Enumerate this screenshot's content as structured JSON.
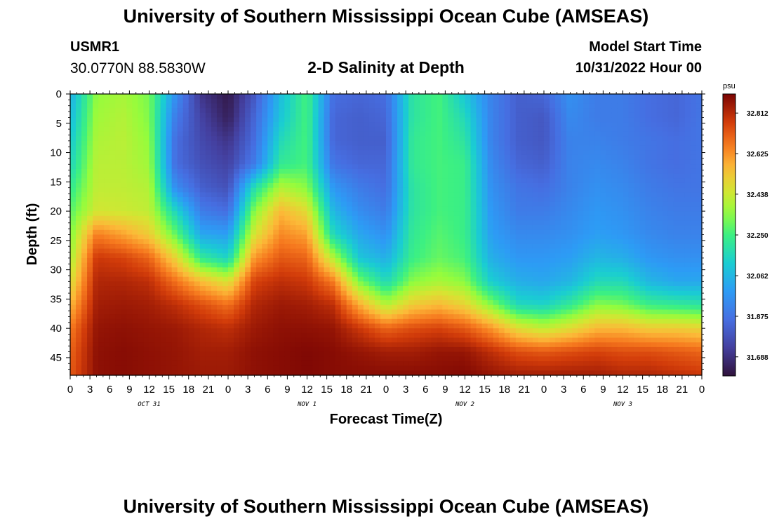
{
  "header": {
    "title": "University of Southern Mississippi Ocean Cube (AMSEAS)",
    "footer_title": "University of Southern Mississippi Ocean Cube (AMSEAS)",
    "station_id": "USMR1",
    "station_location": "30.0770N  88.5830W",
    "plot_title": "2-D Salinity at Depth",
    "model_start_label": "Model Start Time",
    "model_start_value": "10/31/2022 Hour 00"
  },
  "chart_data": {
    "type": "heatmap",
    "title": "2-D Salinity at Depth",
    "xlabel": "Forecast Time(Z)",
    "ylabel": "Depth (ft)",
    "x_unit": "hours since model start",
    "xlim": [
      0,
      96
    ],
    "ylim": [
      0,
      48
    ],
    "y_inverted": true,
    "x_ticks": [
      0,
      3,
      6,
      9,
      12,
      15,
      18,
      21,
      24,
      27,
      30,
      33,
      36,
      39,
      42,
      45,
      48,
      51,
      54,
      57,
      60,
      63,
      66,
      69,
      72,
      75,
      78,
      81,
      84,
      87,
      90,
      93,
      96
    ],
    "x_tick_labels": [
      "0",
      "3",
      "6",
      "9",
      "12",
      "15",
      "18",
      "21",
      "0",
      "3",
      "6",
      "9",
      "12",
      "15",
      "18",
      "21",
      "0",
      "3",
      "6",
      "9",
      "12",
      "15",
      "18",
      "21",
      "0",
      "3",
      "6",
      "9",
      "12",
      "15",
      "18",
      "21",
      "0"
    ],
    "y_ticks": [
      0,
      5,
      10,
      15,
      20,
      25,
      30,
      35,
      40,
      45
    ],
    "y_tick_labels": [
      "0",
      "5",
      "10",
      "15",
      "20",
      "25",
      "30",
      "35",
      "40",
      "45"
    ],
    "date_labels": [
      {
        "label": "OCT 31",
        "hour": 12
      },
      {
        "label": "NOV 1",
        "hour": 36
      },
      {
        "label": "NOV 2",
        "hour": 60
      },
      {
        "label": "NOV 3",
        "hour": 84
      }
    ],
    "colorbar": {
      "unit": "psu",
      "min": 31.6,
      "max": 32.9,
      "tick_values": [
        31.688,
        31.875,
        32.062,
        32.25,
        32.438,
        32.625,
        32.812
      ],
      "tick_labels": [
        "31.688",
        "31.875",
        "32.062",
        "32.250",
        "32.438",
        "32.625",
        "32.812"
      ]
    },
    "grid": {
      "time_hours": [
        0,
        4,
        8,
        12,
        16,
        20,
        24,
        28,
        32,
        36,
        40,
        44,
        48,
        52,
        56,
        60,
        64,
        68,
        72,
        76,
        80,
        84,
        88,
        92,
        96
      ],
      "depth_ft": [
        0,
        4,
        8,
        12,
        16,
        20,
        24,
        28,
        32,
        36,
        40,
        44,
        48
      ],
      "salinity_psu": [
        [
          32.04,
          32.07,
          32.11,
          32.15,
          32.22,
          32.28,
          32.33,
          32.38,
          32.46,
          32.56,
          32.66,
          32.7,
          32.72
        ],
        [
          32.35,
          32.37,
          32.39,
          32.41,
          32.42,
          32.45,
          32.66,
          32.78,
          32.82,
          32.84,
          32.86,
          32.87,
          32.87
        ],
        [
          32.38,
          32.4,
          32.41,
          32.41,
          32.42,
          32.44,
          32.6,
          32.76,
          32.82,
          32.85,
          32.87,
          32.88,
          32.88
        ],
        [
          32.32,
          32.33,
          32.35,
          32.37,
          32.4,
          32.42,
          32.52,
          32.7,
          32.8,
          32.84,
          32.86,
          32.87,
          32.87
        ],
        [
          31.96,
          31.9,
          31.86,
          31.86,
          31.95,
          32.15,
          32.3,
          32.5,
          32.68,
          32.8,
          32.85,
          32.86,
          32.86
        ],
        [
          31.7,
          31.74,
          31.76,
          31.78,
          31.82,
          31.9,
          32.02,
          32.22,
          32.55,
          32.74,
          32.82,
          32.84,
          32.85
        ],
        [
          31.62,
          31.64,
          31.7,
          31.74,
          31.78,
          31.86,
          32.0,
          32.14,
          32.46,
          32.68,
          32.8,
          32.84,
          32.85
        ],
        [
          31.8,
          31.84,
          31.86,
          31.9,
          32.18,
          32.34,
          32.46,
          32.62,
          32.76,
          32.82,
          32.85,
          32.87,
          32.87
        ],
        [
          32.08,
          32.1,
          32.16,
          32.22,
          32.4,
          32.56,
          32.64,
          32.72,
          32.8,
          32.85,
          32.87,
          32.88,
          32.88
        ],
        [
          32.26,
          32.26,
          32.26,
          32.26,
          32.34,
          32.48,
          32.6,
          32.7,
          32.78,
          32.84,
          32.87,
          32.89,
          32.89
        ],
        [
          31.86,
          31.84,
          31.84,
          31.88,
          31.98,
          32.06,
          32.16,
          32.4,
          32.66,
          32.8,
          32.86,
          32.88,
          32.88
        ],
        [
          31.84,
          31.82,
          31.82,
          31.84,
          31.9,
          31.95,
          32.02,
          32.1,
          32.32,
          32.58,
          32.78,
          32.86,
          32.88
        ],
        [
          31.86,
          31.84,
          31.82,
          31.84,
          31.86,
          31.9,
          31.96,
          32.04,
          32.16,
          32.4,
          32.7,
          32.84,
          32.88
        ],
        [
          32.2,
          32.2,
          32.22,
          32.22,
          32.2,
          32.2,
          32.22,
          32.24,
          32.34,
          32.52,
          32.74,
          32.84,
          32.88
        ],
        [
          32.26,
          32.26,
          32.26,
          32.26,
          32.26,
          32.26,
          32.28,
          32.3,
          32.38,
          32.56,
          32.76,
          32.86,
          32.88
        ],
        [
          32.1,
          32.16,
          32.2,
          32.24,
          32.24,
          32.24,
          32.24,
          32.26,
          32.34,
          32.5,
          32.72,
          32.86,
          32.89
        ],
        [
          31.92,
          31.92,
          31.92,
          31.94,
          31.96,
          31.98,
          32.0,
          32.04,
          32.12,
          32.34,
          32.62,
          32.8,
          32.86
        ],
        [
          31.82,
          31.82,
          31.82,
          31.84,
          31.88,
          31.9,
          31.94,
          31.98,
          32.04,
          32.16,
          32.48,
          32.74,
          32.84
        ],
        [
          31.84,
          31.8,
          31.8,
          31.82,
          31.86,
          31.9,
          31.94,
          31.98,
          32.02,
          32.14,
          32.42,
          32.72,
          32.84
        ],
        [
          31.96,
          31.94,
          31.92,
          31.92,
          31.92,
          31.94,
          31.96,
          32.0,
          32.06,
          32.22,
          32.48,
          32.74,
          32.84
        ],
        [
          31.9,
          31.9,
          31.92,
          31.94,
          31.96,
          31.98,
          32.0,
          32.06,
          32.16,
          32.34,
          32.56,
          32.76,
          32.84
        ],
        [
          31.9,
          31.9,
          31.9,
          31.92,
          31.94,
          31.96,
          31.98,
          32.04,
          32.16,
          32.32,
          32.56,
          32.74,
          32.82
        ],
        [
          31.86,
          31.86,
          31.88,
          31.88,
          31.9,
          31.92,
          31.94,
          31.98,
          32.06,
          32.24,
          32.52,
          32.74,
          32.82
        ],
        [
          31.84,
          31.84,
          31.86,
          31.86,
          31.88,
          31.9,
          31.92,
          31.96,
          32.02,
          32.22,
          32.52,
          32.72,
          32.8
        ],
        [
          31.88,
          31.88,
          31.88,
          31.88,
          31.88,
          31.9,
          31.92,
          31.96,
          32.02,
          32.2,
          32.5,
          32.7,
          32.78
        ]
      ]
    }
  }
}
